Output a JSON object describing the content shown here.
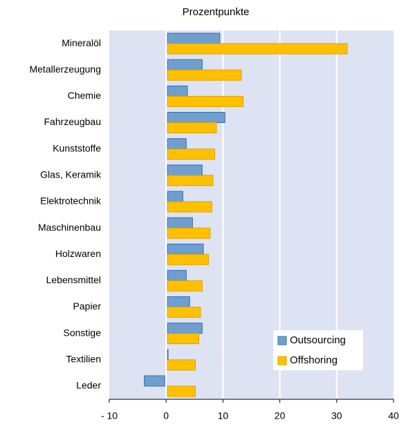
{
  "chart_data": {
    "type": "hbar",
    "title": "Prozentpunkte",
    "categories": [
      "Mineralöl",
      "Metallerzeugung",
      "Chemie",
      "Fahrzeugbau",
      "Kunststoffe",
      "Glas, Keramik",
      "Elektrotechnik",
      "Maschinenbau",
      "Holzwaren",
      "Lebensmittel",
      "Papier",
      "Sonstige",
      "Textilien",
      "Leder"
    ],
    "series": [
      {
        "name": "Outsourcing",
        "color": "#6f9fd0",
        "values": [
          9.2,
          6.1,
          3.5,
          10.1,
          3.3,
          6.1,
          2.7,
          4.4,
          6.3,
          3.3,
          3.9,
          6.1,
          0.1,
          -3.6
        ]
      },
      {
        "name": "Offshoring",
        "color": "#ffc000",
        "values": [
          31.6,
          13.0,
          13.3,
          8.6,
          8.3,
          8.0,
          7.8,
          7.5,
          7.2,
          6.1,
          5.8,
          5.5,
          4.9,
          4.9
        ]
      }
    ],
    "xlim": [
      -10,
      40
    ],
    "xticks": [
      {
        "value": -10,
        "label": "- 10"
      },
      0,
      10,
      20,
      30,
      40
    ],
    "grid": true,
    "legend": "lower-right"
  }
}
